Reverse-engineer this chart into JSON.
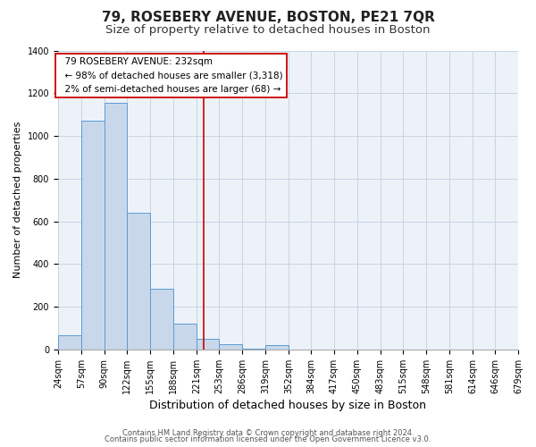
{
  "title": "79, ROSEBERY AVENUE, BOSTON, PE21 7QR",
  "subtitle": "Size of property relative to detached houses in Boston",
  "xlabel": "Distribution of detached houses by size in Boston",
  "ylabel": "Number of detached properties",
  "footer_line1": "Contains HM Land Registry data © Crown copyright and database right 2024.",
  "footer_line2": "Contains public sector information licensed under the Open Government Licence v3.0.",
  "property_line": 232,
  "annotation_title": "79 ROSEBERY AVENUE: 232sqm",
  "annotation_line2": "← 98% of detached houses are smaller (3,318)",
  "annotation_line3": "2% of semi-detached houses are larger (68) →",
  "bin_edges": [
    24,
    57,
    90,
    122,
    155,
    188,
    221,
    253,
    286,
    319,
    352,
    384,
    417,
    450,
    483,
    515,
    548,
    581,
    614,
    646,
    679
  ],
  "bar_heights": [
    65,
    1070,
    1155,
    640,
    285,
    120,
    50,
    25,
    5,
    20,
    0,
    0,
    0,
    0,
    0,
    0,
    0,
    0,
    0,
    0
  ],
  "bar_color": "#c8d8ea",
  "bar_edge_color": "#5b9bd5",
  "grid_color": "#c8d4e4",
  "background_color": "#edf2f9",
  "ylim": [
    0,
    1400
  ],
  "yticks": [
    0,
    200,
    400,
    600,
    800,
    1000,
    1200,
    1400
  ],
  "red_line_color": "#cc0000",
  "annotation_box_edge": "#cc0000",
  "title_fontsize": 11,
  "subtitle_fontsize": 9.5,
  "xlabel_fontsize": 9,
  "ylabel_fontsize": 8,
  "tick_fontsize": 7,
  "annotation_fontsize": 7.5,
  "footer_fontsize": 6
}
